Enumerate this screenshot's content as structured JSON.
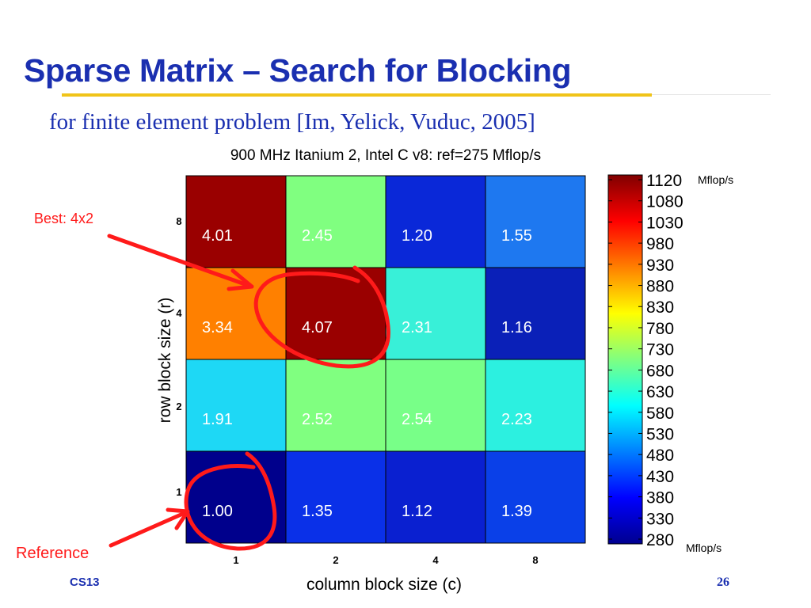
{
  "slide": {
    "title": "Sparse Matrix – Search for Blocking",
    "subtitle": "for finite element problem [Im, Yelick, Vuduc, 2005]",
    "footer_left": "CS13",
    "page_number": "26"
  },
  "annotations": {
    "best_label": "Best: 4x2",
    "reference_label": "Reference",
    "color": "#ff1a1a"
  },
  "chart_data": {
    "type": "heatmap",
    "title": "900 MHz Itanium 2, Intel C v8: ref=275 Mflop/s",
    "xlabel": "column block size (c)",
    "ylabel": "row block size (r)",
    "x_categories": [
      "1",
      "2",
      "4",
      "8"
    ],
    "y_categories": [
      "8",
      "4",
      "2",
      "1"
    ],
    "values": [
      [
        4.01,
        2.45,
        1.2,
        1.55
      ],
      [
        3.34,
        4.07,
        2.31,
        1.16
      ],
      [
        1.91,
        2.52,
        2.54,
        2.23
      ],
      [
        1.0,
        1.35,
        1.12,
        1.39
      ]
    ],
    "colorbar": {
      "min": 280,
      "max": 1120,
      "ticks": [
        "1120",
        "1080",
        "1030",
        "980",
        "930",
        "880",
        "830",
        "780",
        "730",
        "680",
        "630",
        "580",
        "530",
        "480",
        "430",
        "380",
        "330",
        "280"
      ],
      "top_unit": "Mflop/s",
      "bottom_unit": "Mflop/s"
    },
    "cell_colors": [
      [
        "#9a0000",
        "#80ff80",
        "#0a28d8",
        "#1e78f0"
      ],
      [
        "#ff8000",
        "#9a0000",
        "#38f0d8",
        "#0a20b8"
      ],
      [
        "#1ed8f5",
        "#80ff80",
        "#78ff88",
        "#2cf0e0"
      ],
      [
        "#00008c",
        "#0a30e8",
        "#0a20d0",
        "#0a40e8"
      ]
    ]
  }
}
